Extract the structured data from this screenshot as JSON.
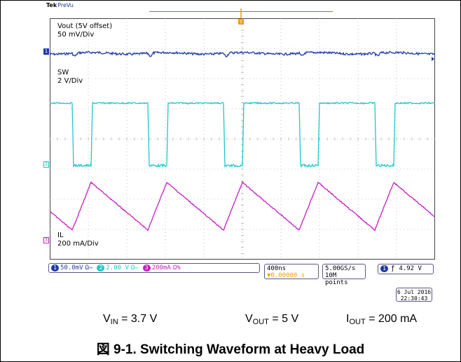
{
  "scope": {
    "brand": "Tek",
    "mode": "PreVu",
    "trigger_marker": "T",
    "colors": {
      "ch1": "#1e3aa8",
      "ch2": "#22c6cc",
      "ch3": "#c21fc2",
      "grid": "#9a9a9a",
      "trigger": "#f0a000"
    }
  },
  "channels": [
    {
      "id": "ch1",
      "marker": "1",
      "name": "Vout (5V offset)",
      "scale": "50 mV/Div"
    },
    {
      "id": "ch2",
      "marker": "2",
      "name": "SW",
      "scale": "2 V/Div"
    },
    {
      "id": "ch3",
      "marker": "3",
      "name": "IL",
      "scale": "200 mA/Div"
    }
  ],
  "status_bar": {
    "ch1": {
      "num": "1",
      "value": "50.0mV",
      "suffix": "Ω̶"
    },
    "ch2": {
      "num": "2",
      "value": "2.00 V",
      "suffix": "Ω̶"
    },
    "ch3": {
      "num": "3",
      "value": "200mA",
      "suffix": "Ω%"
    }
  },
  "timebase": {
    "div": "400ns",
    "position": "▼0.00000 s"
  },
  "sample": {
    "rate": "5.00GS/s",
    "points": "10M points"
  },
  "trigger": {
    "num": "1",
    "slope": "ƒ",
    "level": "4.92 V"
  },
  "datetime": {
    "date": "6 Jul  2016",
    "time": "22:30:43"
  },
  "conditions": {
    "vin_label": "V",
    "vin_sub": "IN",
    "vin_val": " = 3.7 V",
    "vout_label": "V",
    "vout_sub": "OUT",
    "vout_val": " = 5 V",
    "iout_label": "I",
    "iout_sub": "OUT",
    "iout_val": " = 200 mA"
  },
  "caption": "図 9-1. Switching Waveform at Heavy Load"
}
